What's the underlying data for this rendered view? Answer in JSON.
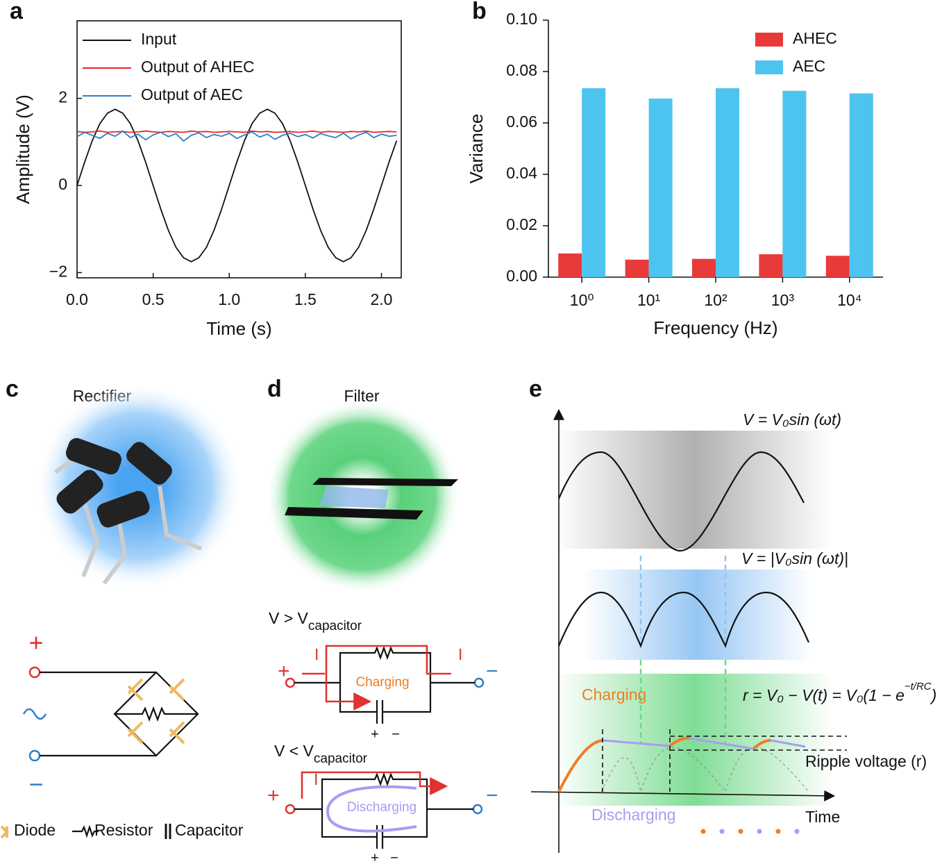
{
  "chart_data": [
    {
      "type": "line",
      "panel": "a",
      "xlabel": "Time (s)",
      "ylabel": "Amplitude (V)",
      "xlim": [
        0,
        2.13
      ],
      "ylim": [
        -2.12,
        3.78
      ],
      "xticks": [
        {
          "value": 0,
          "label": "0.0"
        },
        {
          "value": 0.5,
          "label": "0.5"
        },
        {
          "value": 1,
          "label": "1.0"
        },
        {
          "value": 1.5,
          "label": "1.5"
        },
        {
          "value": 2,
          "label": "2.0"
        }
      ],
      "yticks": [
        {
          "value": -2,
          "label": "−2"
        },
        0,
        2
      ],
      "legend": "upper-left",
      "x": [
        0,
        0.05,
        0.1,
        0.15,
        0.2,
        0.25,
        0.3,
        0.35,
        0.4,
        0.45,
        0.5,
        0.55,
        0.6,
        0.65,
        0.7,
        0.75,
        0.8,
        0.85,
        0.9,
        0.95,
        1,
        1.05,
        1.1,
        1.15,
        1.2,
        1.25,
        1.3,
        1.35,
        1.4,
        1.45,
        1.5,
        1.55,
        1.6,
        1.65,
        1.7,
        1.75,
        1.8,
        1.85,
        1.9,
        1.95,
        2,
        2.05,
        2.1
      ],
      "series": [
        {
          "name": "Input",
          "color": "#111111",
          "values": [
            0,
            0.54,
            1.03,
            1.42,
            1.66,
            1.75,
            1.66,
            1.42,
            1.03,
            0.54,
            0,
            -0.54,
            -1.03,
            -1.42,
            -1.66,
            -1.75,
            -1.66,
            -1.42,
            -1.03,
            -0.54,
            0,
            0.54,
            1.03,
            1.42,
            1.66,
            1.75,
            1.66,
            1.42,
            1.03,
            0.54,
            0,
            -0.54,
            -1.03,
            -1.42,
            -1.66,
            -1.75,
            -1.66,
            -1.42,
            -1.03,
            -0.54,
            0,
            0.54,
            1.03
          ]
        },
        {
          "name": "Output of AHEC",
          "color": "#e8262a",
          "values": [
            1.24,
            1.22,
            1.23,
            1.25,
            1.22,
            1.23,
            1.24,
            1.22,
            1.23,
            1.25,
            1.23,
            1.22,
            1.24,
            1.23,
            1.22,
            1.25,
            1.23,
            1.24,
            1.22,
            1.23,
            1.24,
            1.23,
            1.22,
            1.25,
            1.23,
            1.24,
            1.22,
            1.23,
            1.24,
            1.22,
            1.23,
            1.25,
            1.22,
            1.24,
            1.23,
            1.22,
            1.24,
            1.23,
            1.25,
            1.22,
            1.23,
            1.24,
            1.23
          ]
        },
        {
          "name": "Output of AEC",
          "color": "#2a7fc9",
          "values": [
            1.12,
            1.22,
            1.15,
            1.08,
            1.2,
            1.13,
            1.25,
            1.1,
            1.18,
            1.05,
            1.16,
            1.22,
            1.12,
            1.19,
            1.02,
            1.15,
            1.21,
            1.1,
            1.17,
            1.13,
            1.2,
            1.08,
            1.16,
            1.23,
            1.11,
            1.18,
            1.06,
            1.15,
            1.2,
            1.12,
            1.17,
            1.09,
            1.19,
            1.14,
            1.1,
            1.2,
            1.07,
            1.16,
            1.22,
            1.1,
            1.18,
            1.13,
            1.15
          ]
        }
      ]
    },
    {
      "type": "bar",
      "panel": "b",
      "xlabel": "Frequency (Hz)",
      "ylabel": "Variance",
      "ylim": [
        0,
        0.1
      ],
      "yticks": [
        {
          "value": 0,
          "label": "0.00"
        },
        {
          "value": 0.02,
          "label": "0.02"
        },
        {
          "value": 0.04,
          "label": "0.04"
        },
        {
          "value": 0.06,
          "label": "0.06"
        },
        {
          "value": 0.08,
          "label": "0.08"
        },
        {
          "value": 0.1,
          "label": "0.10"
        }
      ],
      "legend": "upper-right",
      "categories": [
        "10⁰",
        "10¹",
        "10²",
        "10³",
        "10⁴"
      ],
      "series": [
        {
          "name": "AHEC",
          "color": "#e83a3a",
          "values": [
            0.0092,
            0.0068,
            0.0071,
            0.0089,
            0.0083
          ]
        },
        {
          "name": "AEC",
          "color": "#4dc4ef",
          "values": [
            0.0735,
            0.0695,
            0.0735,
            0.0725,
            0.0715
          ]
        }
      ]
    }
  ],
  "panel_c": {
    "label": "c",
    "title": "Rectifier",
    "plus": "+",
    "minus": "−",
    "legend": [
      "Diode",
      "Resistor",
      "Capacitor"
    ]
  },
  "panel_d": {
    "label": "d",
    "title": "Filter",
    "case1": {
      "cond": "V > V",
      "sub": "capacitor",
      "current_in": "I",
      "current_out": "I",
      "state": "Charging",
      "plus": "+",
      "minus": "−",
      "cap_plus": "+",
      "cap_minus": "−"
    },
    "case2": {
      "cond": "V < V",
      "sub": "capacitor",
      "current_in": "I",
      "state": "Discharging",
      "plus": "+",
      "minus": "−",
      "cap_plus": "+",
      "cap_minus": "−"
    }
  },
  "panel_e": {
    "label": "e",
    "eq1": "V = V₀sin (ωt)",
    "eq2": "V = |V₀sin (ωt)|",
    "eq3": "r = V₀ − V(t) = V₀(1 − e",
    "eq3_exp": "−t/RC",
    "eq3_end": ")",
    "charging": "Charging",
    "discharging": "Discharging",
    "ripple": "Ripple voltage (r)",
    "time": "Time"
  }
}
